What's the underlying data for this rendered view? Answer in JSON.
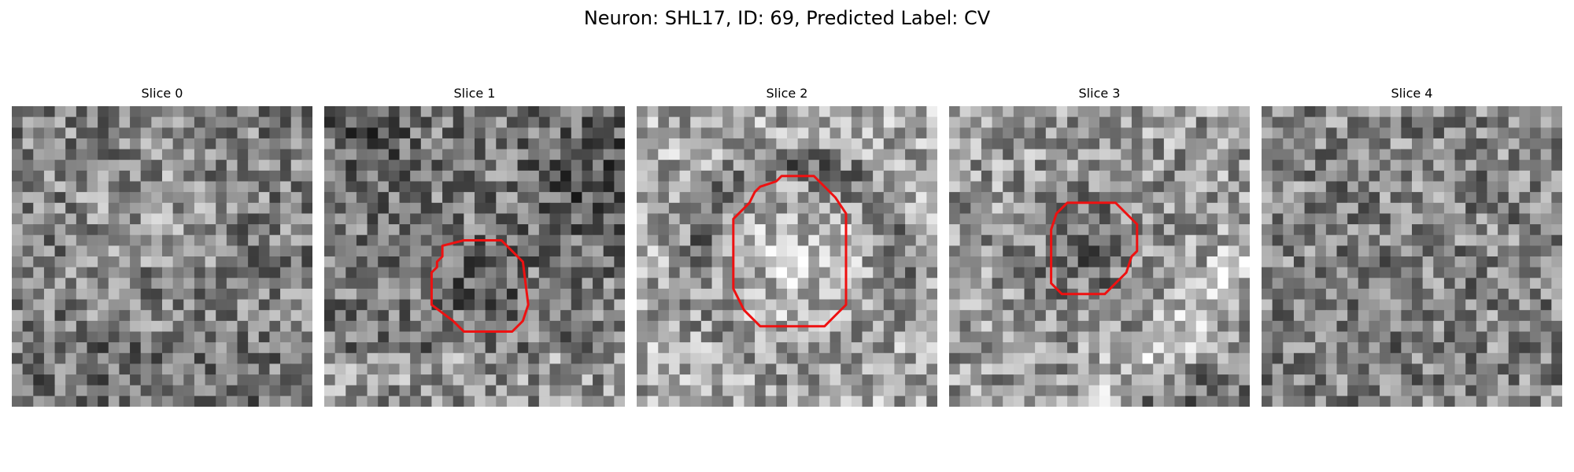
{
  "figure": {
    "title": "Neuron: SHL17, ID: 69, Predicted Label: CV",
    "contour_color": "#ee1111"
  },
  "panels": [
    {
      "title": "Slice 0",
      "seed": 11,
      "mean": 0.5,
      "has_contour": false
    },
    {
      "title": "Slice 1",
      "seed": 23,
      "mean": 0.48,
      "has_contour": true
    },
    {
      "title": "Slice 2",
      "seed": 37,
      "mean": 0.66,
      "has_contour": true
    },
    {
      "title": "Slice 3",
      "seed": 51,
      "mean": 0.6,
      "has_contour": true
    },
    {
      "title": "Slice 4",
      "seed": 73,
      "mean": 0.52,
      "has_contour": false
    }
  ]
}
